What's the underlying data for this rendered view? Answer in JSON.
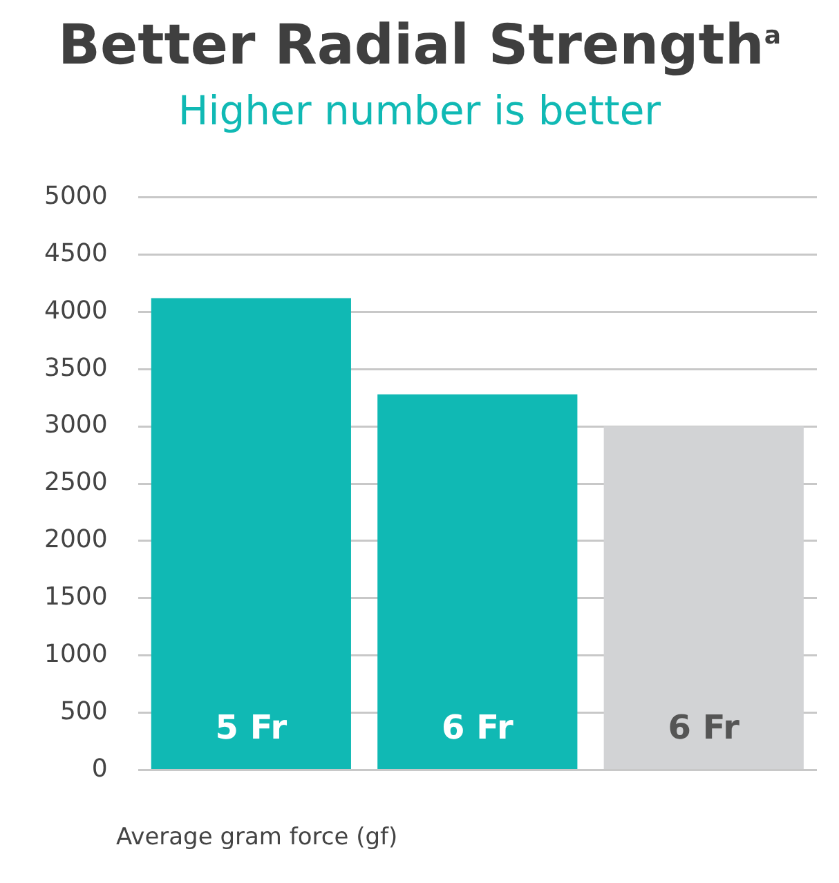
{
  "chart_data": {
    "type": "bar",
    "title": "Better Radial Strength$^{a}$",
    "subtitle": "Higher number is better",
    "xlabel": "Average gram force (gf)",
    "categories": [
      "5 Fr",
      "6 Fr",
      "6 Fr"
    ],
    "values": [
      4120,
      3280,
      3000
    ],
    "colors": [
      "#10b9b4",
      "#10b9b4",
      "#d2d3d5"
    ],
    "ylim": [
      0,
      5000
    ],
    "yticks": [
      0,
      500,
      1000,
      1500,
      2000,
      2500,
      3000,
      3500,
      4000,
      4500,
      5000
    ],
    "grid": "y",
    "legend": false
  }
}
